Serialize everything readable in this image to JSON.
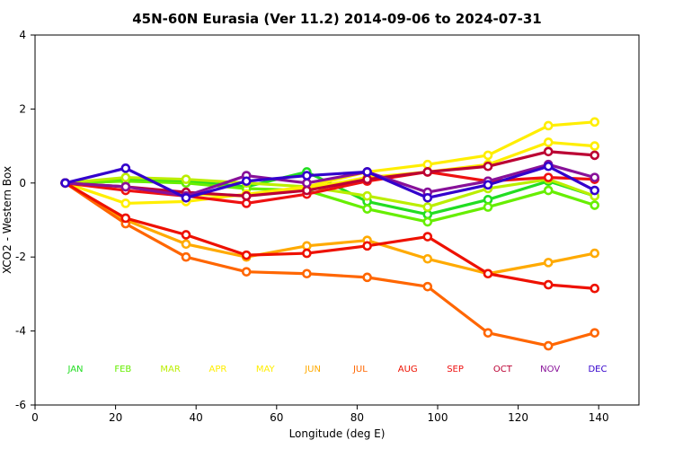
{
  "chart_data": {
    "type": "line",
    "title": "45N-60N Eurasia (Ver 11.2)   2014-09-06 to 2024-07-31",
    "xlabel": "Longitude (deg E)",
    "ylabel": "XCO2 - Western Box",
    "xlim": [
      0,
      150
    ],
    "ylim": [
      -6,
      4
    ],
    "xticks": [
      0,
      20,
      40,
      60,
      80,
      100,
      120,
      140
    ],
    "yticks": [
      -6,
      -4,
      -2,
      0,
      2,
      4
    ],
    "grid": false,
    "legend_placement": "bottom",
    "x": [
      7.5,
      22.5,
      37.5,
      52.5,
      67.5,
      82.5,
      97.5,
      112.5,
      127.5,
      139
    ],
    "series": [
      {
        "name": "JAN",
        "color": "#22dd22",
        "values": [
          0.0,
          0.1,
          0.05,
          -0.1,
          0.3,
          -0.5,
          -0.85,
          -0.45,
          0.05,
          -0.35
        ]
      },
      {
        "name": "FEB",
        "color": "#66ee00",
        "values": [
          0.0,
          0.05,
          0.0,
          -0.15,
          -0.2,
          -0.7,
          -1.05,
          -0.65,
          -0.2,
          -0.6
        ]
      },
      {
        "name": "MAR",
        "color": "#bbee00",
        "values": [
          0.0,
          0.15,
          0.1,
          0.0,
          -0.1,
          -0.35,
          -0.65,
          -0.15,
          0.1,
          -0.35
        ]
      },
      {
        "name": "APR",
        "color": "#ffee00",
        "values": [
          0.0,
          -0.55,
          -0.5,
          -0.3,
          -0.1,
          0.3,
          0.5,
          0.75,
          1.55,
          1.65
        ]
      },
      {
        "name": "MAY",
        "color": "#ffee00",
        "values": [
          0.0,
          -0.1,
          -0.3,
          -0.35,
          -0.15,
          0.15,
          0.3,
          0.5,
          1.1,
          1.0
        ]
      },
      {
        "name": "JUN",
        "color": "#ffaa00",
        "values": [
          0.0,
          -1.0,
          -1.65,
          -2.0,
          -1.7,
          -1.55,
          -2.05,
          -2.45,
          -2.15,
          -1.9
        ]
      },
      {
        "name": "JUL",
        "color": "#ff6600",
        "values": [
          0.0,
          -1.1,
          -2.0,
          -2.4,
          -2.45,
          -2.55,
          -2.8,
          -4.05,
          -4.4,
          -4.05
        ]
      },
      {
        "name": "AUG",
        "color": "#ee1100",
        "values": [
          0.0,
          -0.95,
          -1.4,
          -1.95,
          -1.9,
          -1.7,
          -1.45,
          -2.45,
          -2.75,
          -2.85
        ]
      },
      {
        "name": "SEP",
        "color": "#ee1111",
        "values": [
          0.0,
          -0.2,
          -0.35,
          -0.55,
          -0.3,
          0.05,
          0.3,
          0.05,
          0.15,
          0.1
        ]
      },
      {
        "name": "OCT",
        "color": "#bb0033",
        "values": [
          0.0,
          -0.1,
          -0.25,
          -0.35,
          -0.2,
          0.1,
          0.3,
          0.45,
          0.85,
          0.75
        ]
      },
      {
        "name": "NOV",
        "color": "#881199",
        "values": [
          0.0,
          -0.1,
          -0.35,
          0.2,
          0.0,
          0.3,
          -0.25,
          0.05,
          0.5,
          0.15
        ]
      },
      {
        "name": "DEC",
        "color": "#3300cc",
        "values": [
          0.0,
          0.4,
          -0.4,
          0.05,
          0.2,
          0.3,
          -0.4,
          -0.05,
          0.45,
          -0.2
        ]
      }
    ]
  }
}
